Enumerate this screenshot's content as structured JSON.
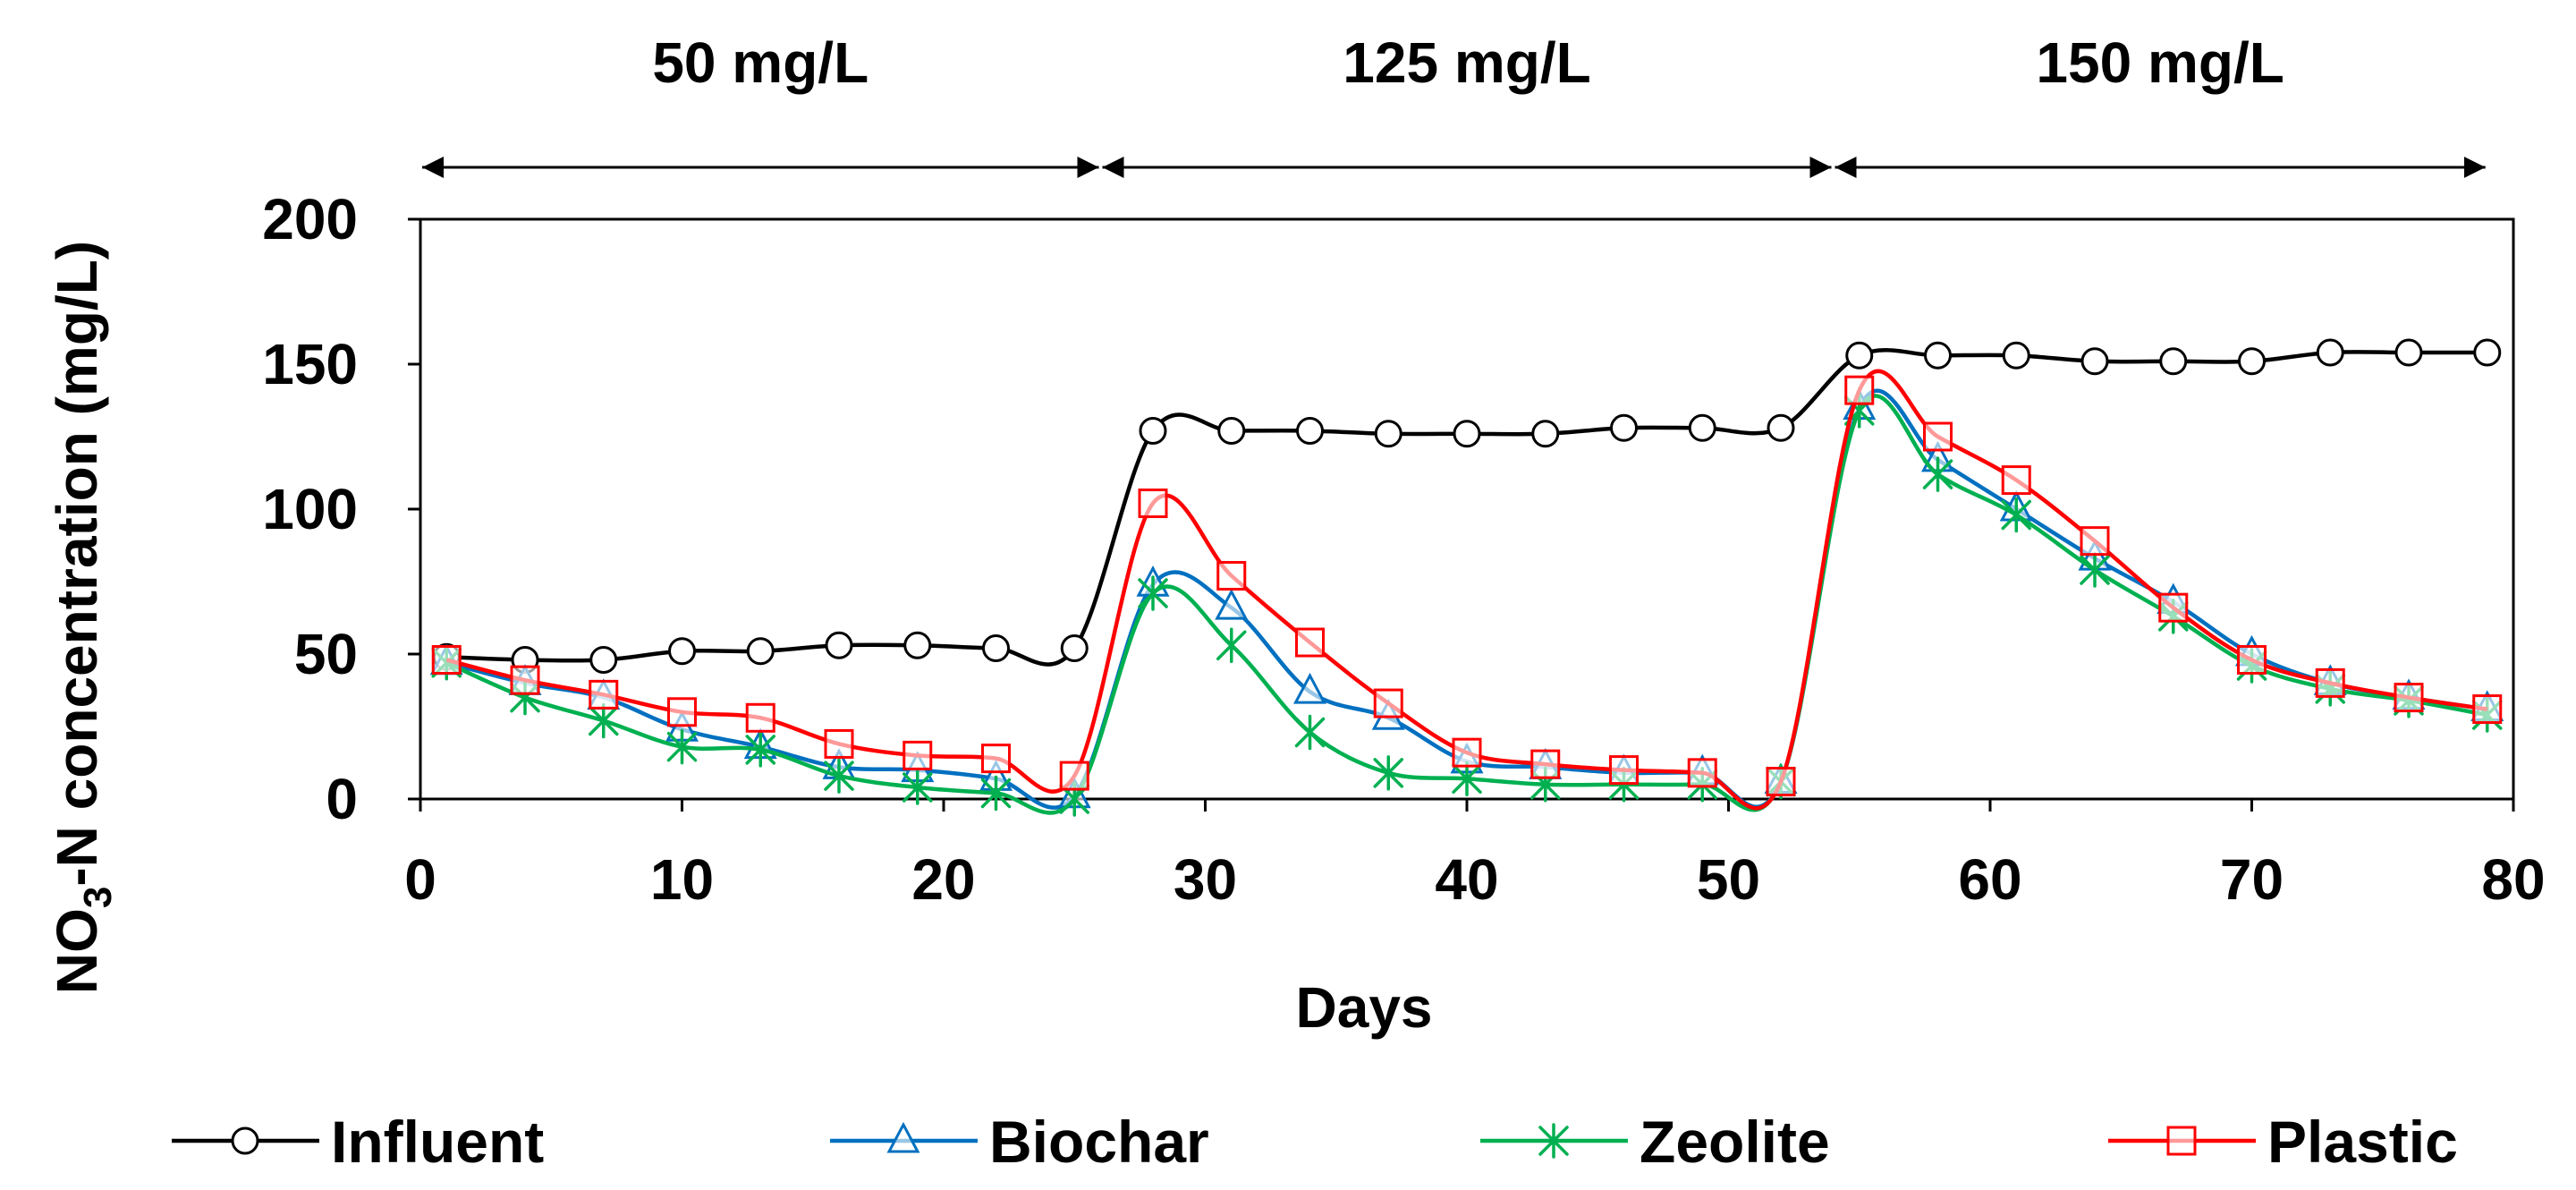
{
  "chart_data": {
    "type": "line",
    "title": "",
    "xlabel": "Days",
    "ylabel": {
      "prefix": "NO",
      "subscript": "3",
      "suffix": "-N concentration (mg/L)"
    },
    "xlim": [
      0,
      80
    ],
    "ylim": [
      0,
      200
    ],
    "xticks": [
      0,
      10,
      20,
      30,
      40,
      50,
      60,
      70,
      80
    ],
    "yticks": [
      0,
      50,
      100,
      150,
      200
    ],
    "grid": false,
    "legend_position": "bottom",
    "phases": [
      {
        "label": "50 mg/L",
        "start": 0,
        "end": 26
      },
      {
        "label": "125 mg/L",
        "start": 26,
        "end": 54
      },
      {
        "label": "150 mg/L",
        "start": 54,
        "end": 79
      }
    ],
    "series": [
      {
        "name": "Influent",
        "color": "#000000",
        "marker": "circle",
        "x": [
          1,
          4,
          7,
          10,
          13,
          16,
          19,
          22,
          25,
          28,
          31,
          34,
          37,
          40,
          43,
          46,
          49,
          52,
          55,
          58,
          61,
          64,
          67,
          70,
          73,
          76,
          79
        ],
        "values": [
          49,
          48,
          48,
          51,
          51,
          53,
          53,
          52,
          52,
          127,
          127,
          127,
          126,
          126,
          126,
          128,
          128,
          128,
          153,
          153,
          153,
          151,
          151,
          151,
          154,
          154,
          154
        ]
      },
      {
        "name": "Biochar",
        "color": "#0070C0",
        "marker": "triangle",
        "x": [
          1,
          4,
          7,
          10,
          13,
          16,
          19,
          22,
          25,
          28,
          31,
          34,
          37,
          40,
          43,
          46,
          49,
          52,
          55,
          58,
          61,
          64,
          67,
          70,
          73,
          76,
          79
        ],
        "values": [
          47,
          40,
          35,
          24,
          18,
          11,
          10,
          7,
          1,
          74,
          66,
          37,
          28,
          13,
          11,
          9,
          9,
          6,
          135,
          117,
          100,
          83,
          68,
          50,
          40,
          35,
          31
        ]
      },
      {
        "name": "Zeolite",
        "color": "#00B050",
        "marker": "asterisk",
        "x": [
          1,
          4,
          7,
          10,
          13,
          16,
          19,
          22,
          25,
          28,
          31,
          34,
          37,
          40,
          43,
          46,
          49,
          52,
          55,
          58,
          61,
          64,
          67,
          70,
          73,
          76,
          79
        ],
        "values": [
          47,
          35,
          27,
          18,
          17,
          8,
          4,
          2,
          0,
          71,
          53,
          23,
          9,
          7,
          5,
          5,
          5,
          6,
          134,
          112,
          98,
          79,
          63,
          46,
          38,
          34,
          29
        ]
      },
      {
        "name": "Plastic",
        "color": "#FF0000",
        "marker": "square",
        "x": [
          1,
          4,
          7,
          10,
          13,
          16,
          19,
          22,
          25,
          28,
          31,
          34,
          37,
          40,
          43,
          46,
          49,
          52,
          55,
          58,
          61,
          64,
          67,
          70,
          73,
          76,
          79
        ],
        "values": [
          48,
          41,
          36,
          30,
          28,
          19,
          15,
          14,
          8,
          102,
          77,
          54,
          33,
          16,
          12,
          10,
          9,
          6,
          141,
          125,
          110,
          89,
          66,
          48,
          40,
          35,
          31
        ]
      }
    ]
  }
}
